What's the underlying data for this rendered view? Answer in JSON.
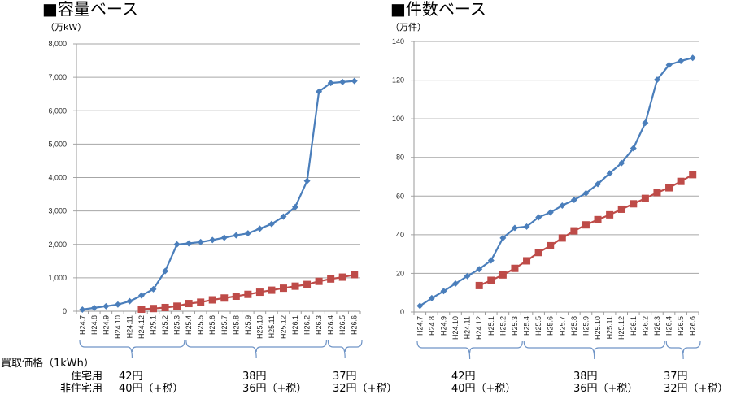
{
  "colors": {
    "series_total": "#4a7ebb",
    "series_non_res": "#be4b48",
    "grid": "#a6a6a6",
    "brace": "#6f94c6"
  },
  "chart_data": [
    {
      "type": "line",
      "title": "■容量ベース",
      "ylabel": "（万kW）",
      "xlabel": "",
      "ylim": [
        0,
        8000
      ],
      "yticks": [
        0,
        1000,
        2000,
        3000,
        4000,
        5000,
        6000,
        7000,
        8000
      ],
      "ytick_labels": [
        "0",
        "1,000",
        "2,000",
        "3,000",
        "4,000",
        "5,000",
        "6,000",
        "7,000",
        "8,000"
      ],
      "grid": true,
      "categories": [
        "H24.7",
        "H24.8",
        "H24.9",
        "H24.10",
        "H24.11",
        "H24.12",
        "H25.1",
        "H25.2",
        "H25.3",
        "H25.4",
        "H25.5",
        "H25.6",
        "H25.7",
        "H25.8",
        "H25.9",
        "H25.10",
        "H25.11",
        "H25.12",
        "H26.1",
        "H26.2",
        "H26.3",
        "H26.4",
        "H26.5",
        "H26.6"
      ],
      "series": [
        {
          "name": "blue-diamond",
          "marker": "diamond",
          "values": [
            50,
            100,
            150,
            200,
            300,
            470,
            660,
            1200,
            2000,
            2030,
            2070,
            2130,
            2200,
            2270,
            2330,
            2470,
            2610,
            2830,
            3120,
            3900,
            6570,
            6830,
            6860,
            6890
          ]
        },
        {
          "name": "red-square",
          "marker": "square",
          "values": [
            null,
            null,
            null,
            null,
            null,
            60,
            80,
            110,
            150,
            230,
            270,
            340,
            395,
            450,
            505,
            570,
            630,
            690,
            750,
            800,
            895,
            965,
            1020,
            1095
          ]
        }
      ]
    },
    {
      "type": "line",
      "title": "■件数ベース",
      "ylabel": "（万件）",
      "xlabel": "",
      "ylim": [
        0,
        140
      ],
      "yticks": [
        0,
        20,
        40,
        60,
        80,
        100,
        120,
        140
      ],
      "ytick_labels": [
        "0",
        "20",
        "40",
        "60",
        "80",
        "100",
        "120",
        "140"
      ],
      "grid": true,
      "categories": [
        "H24.7",
        "H24.8",
        "H24.9",
        "H24.10",
        "H24.11",
        "H24.12",
        "H25.1",
        "H25.2",
        "H25.3",
        "H25.4",
        "H25.5",
        "H25.6",
        "H25.7",
        "H25.8",
        "H25.9",
        "H25.10",
        "H25.11",
        "H25.12",
        "H26.1",
        "H26.2",
        "H26.3",
        "H26.4",
        "H26.5",
        "H26.6"
      ],
      "series": [
        {
          "name": "blue-diamond",
          "marker": "diamond",
          "values": [
            3.2,
            7.2,
            10.8,
            14.7,
            18.6,
            22.2,
            26.7,
            38.3,
            43.5,
            44.2,
            49.0,
            51.5,
            55.1,
            58.0,
            61.5,
            66.2,
            71.8,
            77.1,
            84.7,
            97.9,
            120.2,
            127.8,
            129.9,
            131.5
          ]
        },
        {
          "name": "red-square",
          "marker": "square",
          "values": [
            null,
            null,
            null,
            null,
            null,
            13.7,
            16.4,
            19.2,
            22.6,
            26.5,
            30.8,
            34.3,
            38.3,
            42.0,
            45.1,
            47.8,
            50.3,
            53.2,
            56.0,
            58.8,
            61.8,
            64.3,
            67.6,
            71.1
          ]
        }
      ]
    }
  ],
  "price_periods": [
    {
      "from": "H24.7",
      "to": "H25.3",
      "residential": "42円",
      "non_residential": "40円（+税）"
    },
    {
      "from": "H25.4",
      "to": "H26.3",
      "residential": "38円",
      "non_residential": "36円（+税）"
    },
    {
      "from": "H26.4",
      "to": "H26.6",
      "residential": "37円",
      "non_residential": "32円（+税）"
    }
  ],
  "price_labels": {
    "heading": "買取価格（1kWh）",
    "residential": "住宅用",
    "non_residential": "非住宅用"
  }
}
